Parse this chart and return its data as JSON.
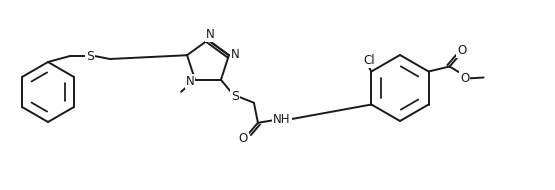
{
  "bg_color": "#ffffff",
  "line_color": "#1a1a1a",
  "line_width": 1.4,
  "font_size": 8.5,
  "figsize": [
    5.55,
    1.9
  ],
  "dpi": 100,
  "xlim": [
    0,
    5.55
  ],
  "ylim": [
    0,
    1.9
  ]
}
